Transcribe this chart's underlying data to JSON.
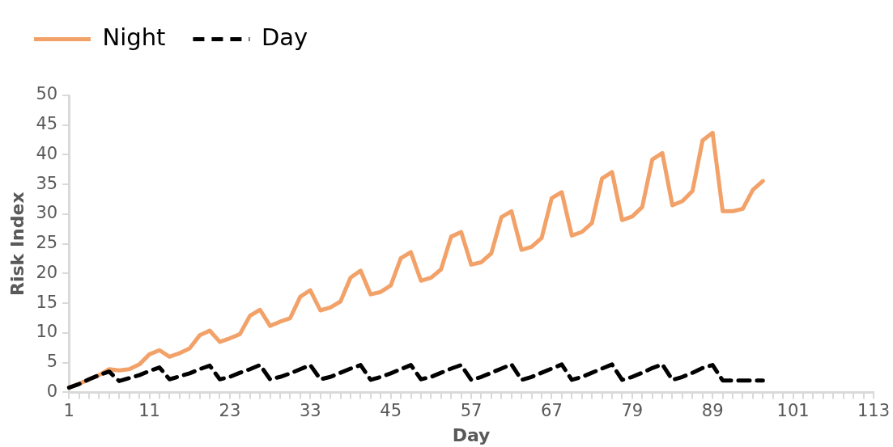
{
  "chart_data": {
    "type": "line",
    "xlabel": "Day",
    "ylabel": "Risk Index",
    "categories": [
      "1",
      null,
      null,
      null,
      null,
      null,
      null,
      null,
      "11",
      null,
      null,
      null,
      null,
      null,
      null,
      null,
      "23",
      null,
      null,
      null,
      null,
      null,
      null,
      null,
      "33",
      null,
      null,
      null,
      null,
      null,
      null,
      null,
      "45",
      null,
      null,
      null,
      null,
      null,
      null,
      null,
      "57",
      null,
      null,
      null,
      null,
      null,
      null,
      null,
      "67",
      null,
      null,
      null,
      null,
      null,
      null,
      null,
      "79",
      null,
      null,
      null,
      null,
      null,
      null,
      null,
      "89",
      null,
      null,
      null,
      null,
      null,
      null,
      null,
      "101",
      null,
      null,
      null,
      null,
      null,
      null,
      null,
      "113"
    ],
    "series": [
      {
        "name": "Day",
        "color": "#000000",
        "line_style": "dashed",
        "values": [
          0.8,
          1.4,
          2.2,
          2.9,
          3.5,
          1.9,
          2.4,
          2.9,
          3.6,
          4.2,
          2.2,
          2.7,
          3.2,
          3.9,
          4.5,
          2.2,
          2.6,
          3.3,
          3.9,
          4.6,
          2.2,
          2.6,
          3.2,
          3.9,
          4.6,
          2.2,
          2.6,
          3.3,
          4.0,
          4.6,
          2.1,
          2.6,
          3.2,
          3.9,
          4.6,
          2.2,
          2.6,
          3.3,
          4.0,
          4.6,
          2.1,
          2.6,
          3.3,
          4.0,
          4.7,
          2.1,
          2.6,
          3.3,
          4.0,
          4.7,
          2.1,
          2.6,
          3.3,
          4.0,
          4.7,
          2.1,
          2.6,
          3.3,
          4.1,
          4.7,
          2.1,
          2.6,
          3.3,
          4.1,
          4.6,
          2.0,
          2.0,
          2.0,
          2.0,
          2.0,
          null,
          null,
          null,
          null,
          null,
          null,
          null,
          null,
          null,
          null,
          null
        ]
      },
      {
        "name": "Night",
        "color": "#f2a168",
        "line_style": "solid",
        "values": [
          0.8,
          1.4,
          2.2,
          2.9,
          3.9,
          3.7,
          3.9,
          4.7,
          6.4,
          7.1,
          6.0,
          6.6,
          7.4,
          9.6,
          10.4,
          8.5,
          9.1,
          9.8,
          12.9,
          13.9,
          11.2,
          11.9,
          12.5,
          16.1,
          17.2,
          13.8,
          14.3,
          15.3,
          19.3,
          20.5,
          16.5,
          16.9,
          18.0,
          22.6,
          23.6,
          18.8,
          19.3,
          20.7,
          26.2,
          27.0,
          21.5,
          21.9,
          23.4,
          29.5,
          30.5,
          24.0,
          24.5,
          26.0,
          32.7,
          33.7,
          26.4,
          27.0,
          28.5,
          36.0,
          37.1,
          29.0,
          29.6,
          31.2,
          39.2,
          40.3,
          31.5,
          32.2,
          33.9,
          42.4,
          43.7,
          30.5,
          30.5,
          30.9,
          34.1,
          35.6,
          null,
          null,
          null,
          null,
          null,
          null,
          null,
          null,
          null,
          null,
          null
        ]
      }
    ],
    "ylim": [
      0,
      50
    ],
    "yticks": [
      0,
      5,
      10,
      15,
      20,
      25,
      30,
      35,
      40,
      45,
      50
    ],
    "grid": false,
    "legend": "top left",
    "marker": "none"
  }
}
